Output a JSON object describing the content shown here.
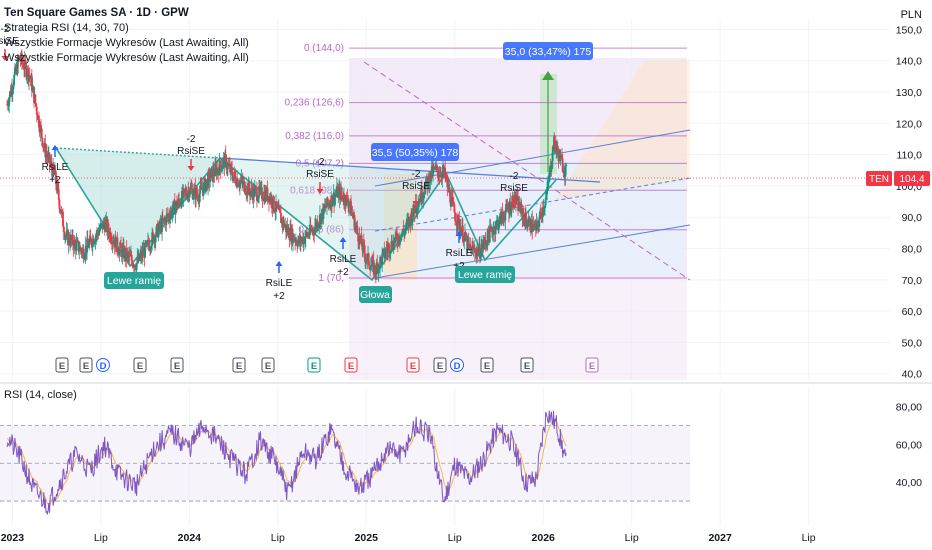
{
  "header": {
    "title": "Ten Square Games SA · 1D · GPW",
    "indicators": [
      "Strategia RSI (14, 30, 70)",
      "Wszystkie Formacje Wykresów (Last Awaiting, All)",
      "Wszystkie Formacje Wykresów (Last Awaiting, All)"
    ],
    "currency": "PLN"
  },
  "rsi_legend": "RSI (14, close)",
  "price_tag": {
    "ticker": "TEN",
    "value": "104,4"
  },
  "colors": {
    "candle_up": "#089981",
    "candle_down": "#f23645",
    "hs_fill": "#b2dfdb",
    "fib": "#ba68c8",
    "channel": "#5b7fd6",
    "rsi_line": "#7e57c2",
    "rsi_ma": "#f5b94a"
  },
  "annotations": {
    "measure_top": "35,0 (33,47%) 175",
    "measure_mid": "35,5 (50,35%) 178",
    "shoulder_left": "Lewe ramię",
    "shoulder_right": "Lewe ramię",
    "head": "Głowa"
  },
  "fib_labels": [
    "0 (144,0)",
    "0,236 (126,6)",
    "0,382 (116,0)",
    "0,5 (107,2)",
    "0,618 (98,6)",
    "0,786 (86)",
    "1 (70,"
  ],
  "signals": [
    {
      "type": "RsiLE",
      "count": "+2"
    },
    {
      "type": "RsiSE",
      "count": "-2"
    },
    {
      "type": "RsiLE",
      "count": "+2"
    },
    {
      "type": "RsiSE",
      "count": "-2"
    },
    {
      "type": "RsiLE",
      "count": "+2"
    },
    {
      "type": "RsiSE",
      "count": "-2"
    },
    {
      "type": "RsiLE",
      "count": "+2"
    },
    {
      "type": "RsiSE",
      "count": "-2"
    },
    {
      "type": "RsiSE",
      "count": "-2"
    }
  ],
  "earnings_marker": "E",
  "dividend_marker": "D",
  "chart_data": {
    "type": "candlestick",
    "price_axis": {
      "ticks": [
        "150,0",
        "140,0",
        "130,0",
        "120,0",
        "110,0",
        "100,0",
        "90,0",
        "80,0",
        "70,0",
        "60,0",
        "50,0",
        "40,0"
      ],
      "range": [
        38,
        153
      ]
    },
    "rsi_axis": {
      "ticks": [
        "80,00",
        "60,00",
        "40,00"
      ],
      "bands": [
        30,
        70
      ],
      "range": [
        20,
        85
      ]
    },
    "time_axis": [
      "2023",
      "Lip",
      "2024",
      "Lip",
      "2025",
      "Lip",
      "2026",
      "Lip",
      "2027",
      "Lip"
    ],
    "last_price": 104.4,
    "series": [
      {
        "name": "price",
        "points": [
          [
            2022.97,
            126
          ],
          [
            2023.04,
            141
          ],
          [
            2023.1,
            135
          ],
          [
            2023.18,
            112
          ],
          [
            2023.24,
            103
          ],
          [
            2023.3,
            84
          ],
          [
            2023.4,
            79
          ],
          [
            2023.52,
            88
          ],
          [
            2023.6,
            80
          ],
          [
            2023.7,
            75
          ],
          [
            2023.8,
            84
          ],
          [
            2023.9,
            92
          ],
          [
            2024.0,
            99
          ],
          [
            2024.05,
            97
          ],
          [
            2024.12,
            103
          ],
          [
            2024.2,
            108
          ],
          [
            2024.25,
            103
          ],
          [
            2024.35,
            98
          ],
          [
            2024.45,
            97
          ],
          [
            2024.55,
            86
          ],
          [
            2024.62,
            82
          ],
          [
            2024.7,
            86
          ],
          [
            2024.78,
            94
          ],
          [
            2024.84,
            98
          ],
          [
            2024.9,
            95
          ],
          [
            2024.95,
            85
          ],
          [
            2025.0,
            77
          ],
          [
            2025.05,
            73
          ],
          [
            2025.12,
            80
          ],
          [
            2025.22,
            86
          ],
          [
            2025.3,
            96
          ],
          [
            2025.38,
            105
          ],
          [
            2025.44,
            104
          ],
          [
            2025.5,
            91
          ],
          [
            2025.58,
            80
          ],
          [
            2025.64,
            79
          ],
          [
            2025.7,
            85
          ],
          [
            2025.78,
            91
          ],
          [
            2025.84,
            96
          ],
          [
            2025.9,
            89
          ],
          [
            2025.96,
            86
          ],
          [
            2026.02,
            97
          ],
          [
            2026.06,
            114
          ],
          [
            2026.1,
            108
          ],
          [
            2026.13,
            104.4
          ]
        ]
      },
      {
        "name": "RSI",
        "points": [
          [
            2022.97,
            64
          ],
          [
            2023.05,
            52
          ],
          [
            2023.12,
            36
          ],
          [
            2023.2,
            28
          ],
          [
            2023.28,
            42
          ],
          [
            2023.36,
            55
          ],
          [
            2023.44,
            46
          ],
          [
            2023.52,
            60
          ],
          [
            2023.6,
            44
          ],
          [
            2023.7,
            38
          ],
          [
            2023.8,
            58
          ],
          [
            2023.9,
            66
          ],
          [
            2024.0,
            58
          ],
          [
            2024.08,
            70
          ],
          [
            2024.16,
            62
          ],
          [
            2024.24,
            52
          ],
          [
            2024.32,
            44
          ],
          [
            2024.4,
            62
          ],
          [
            2024.48,
            52
          ],
          [
            2024.56,
            34
          ],
          [
            2024.64,
            56
          ],
          [
            2024.72,
            52
          ],
          [
            2024.8,
            68
          ],
          [
            2024.88,
            48
          ],
          [
            2024.96,
            36
          ],
          [
            2025.04,
            44
          ],
          [
            2025.12,
            58
          ],
          [
            2025.2,
            54
          ],
          [
            2025.28,
            70
          ],
          [
            2025.36,
            64
          ],
          [
            2025.44,
            30
          ],
          [
            2025.5,
            50
          ],
          [
            2025.58,
            42
          ],
          [
            2025.66,
            52
          ],
          [
            2025.74,
            68
          ],
          [
            2025.82,
            62
          ],
          [
            2025.9,
            40
          ],
          [
            2025.96,
            42
          ],
          [
            2026.02,
            78
          ],
          [
            2026.08,
            70
          ],
          [
            2026.13,
            50
          ]
        ]
      }
    ]
  }
}
